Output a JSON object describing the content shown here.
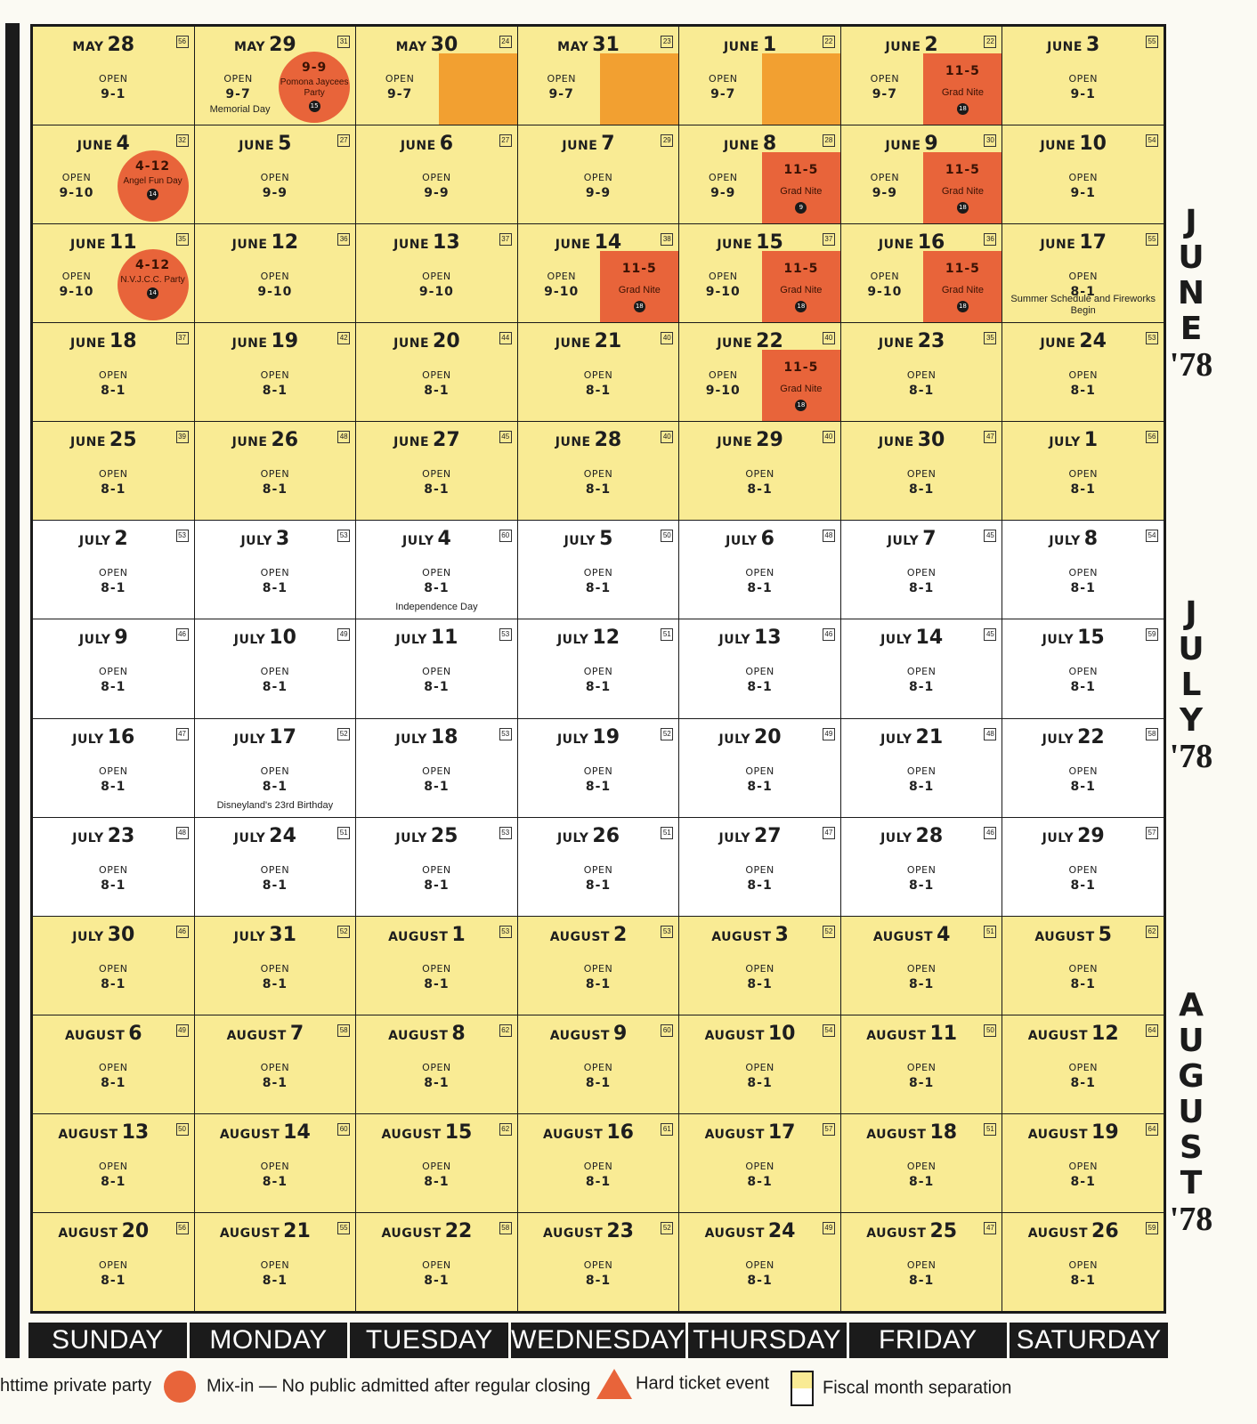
{
  "colors": {
    "june_aug_cell": "#f9eb94",
    "july_cell": "#ffffff",
    "event_orange": "#e8643a",
    "light_orange": "#f2a031",
    "bar": "#1b1b1b"
  },
  "cells": [
    {
      "month": "MAY",
      "day": "28",
      "num": "56",
      "bg": "y",
      "open": "OPEN",
      "hours": "9-1"
    },
    {
      "month": "MAY",
      "day": "29",
      "num": "31",
      "bg": "y",
      "open": "OPEN",
      "hours": "9-7",
      "note": "Memorial Day",
      "circle": {
        "time": "9-9",
        "label": "Pomona Jaycees Party",
        "badge": "15"
      }
    },
    {
      "month": "MAY",
      "day": "30",
      "num": "24",
      "bg": "y",
      "open": "OPEN",
      "hours": "9-7",
      "square": true
    },
    {
      "month": "MAY",
      "day": "31",
      "num": "23",
      "bg": "y",
      "open": "OPEN",
      "hours": "9-7",
      "square": true
    },
    {
      "month": "JUNE",
      "day": "1",
      "num": "22",
      "bg": "y",
      "open": "OPEN",
      "hours": "9-7",
      "square": true
    },
    {
      "month": "JUNE",
      "day": "2",
      "num": "22",
      "bg": "y",
      "open": "OPEN",
      "hours": "9-7",
      "event": {
        "time": "11-5",
        "label": "Grad Nite",
        "badge": "18"
      }
    },
    {
      "month": "JUNE",
      "day": "3",
      "num": "55",
      "bg": "y",
      "open": "OPEN",
      "hours": "9-1"
    },
    {
      "month": "JUNE",
      "day": "4",
      "num": "32",
      "bg": "y",
      "open": "OPEN",
      "hours": "9-10",
      "circle": {
        "time": "4-12",
        "label": "Angel Fun Day",
        "badge": "14"
      }
    },
    {
      "month": "JUNE",
      "day": "5",
      "num": "27",
      "bg": "y",
      "open": "OPEN",
      "hours": "9-9"
    },
    {
      "month": "JUNE",
      "day": "6",
      "num": "27",
      "bg": "y",
      "open": "OPEN",
      "hours": "9-9"
    },
    {
      "month": "JUNE",
      "day": "7",
      "num": "29",
      "bg": "y",
      "open": "OPEN",
      "hours": "9-9"
    },
    {
      "month": "JUNE",
      "day": "8",
      "num": "28",
      "bg": "y",
      "open": "OPEN",
      "hours": "9-9",
      "event": {
        "time": "11-5",
        "label": "Grad Nite",
        "badge": "9"
      }
    },
    {
      "month": "JUNE",
      "day": "9",
      "num": "30",
      "bg": "y",
      "open": "OPEN",
      "hours": "9-9",
      "event": {
        "time": "11-5",
        "label": "Grad Nite",
        "badge": "18"
      }
    },
    {
      "month": "JUNE",
      "day": "10",
      "num": "54",
      "bg": "y",
      "open": "OPEN",
      "hours": "9-1"
    },
    {
      "month": "JUNE",
      "day": "11",
      "num": "35",
      "bg": "y",
      "open": "OPEN",
      "hours": "9-10",
      "circle": {
        "time": "4-12",
        "label": "N.V.J.C.C. Party",
        "badge": "14"
      }
    },
    {
      "month": "JUNE",
      "day": "12",
      "num": "36",
      "bg": "y",
      "open": "OPEN",
      "hours": "9-10"
    },
    {
      "month": "JUNE",
      "day": "13",
      "num": "37",
      "bg": "y",
      "open": "OPEN",
      "hours": "9-10"
    },
    {
      "month": "JUNE",
      "day": "14",
      "num": "38",
      "bg": "y",
      "open": "OPEN",
      "hours": "9-10",
      "event": {
        "time": "11-5",
        "label": "Grad Nite",
        "badge": "18"
      }
    },
    {
      "month": "JUNE",
      "day": "15",
      "num": "37",
      "bg": "y",
      "open": "OPEN",
      "hours": "9-10",
      "event": {
        "time": "11-5",
        "label": "Grad Nite",
        "badge": "18"
      }
    },
    {
      "month": "JUNE",
      "day": "16",
      "num": "36",
      "bg": "y",
      "open": "OPEN",
      "hours": "9-10",
      "event": {
        "time": "11-5",
        "label": "Grad Nite",
        "badge": "18"
      }
    },
    {
      "month": "JUNE",
      "day": "17",
      "num": "55",
      "bg": "y",
      "open": "OPEN",
      "hours": "8-1",
      "note": "Summer Schedule and Fireworks Begin"
    },
    {
      "month": "JUNE",
      "day": "18",
      "num": "37",
      "bg": "y",
      "open": "OPEN",
      "hours": "8-1"
    },
    {
      "month": "JUNE",
      "day": "19",
      "num": "42",
      "bg": "y",
      "open": "OPEN",
      "hours": "8-1"
    },
    {
      "month": "JUNE",
      "day": "20",
      "num": "44",
      "bg": "y",
      "open": "OPEN",
      "hours": "8-1"
    },
    {
      "month": "JUNE",
      "day": "21",
      "num": "40",
      "bg": "y",
      "open": "OPEN",
      "hours": "8-1"
    },
    {
      "month": "JUNE",
      "day": "22",
      "num": "40",
      "bg": "y",
      "open": "OPEN",
      "hours": "9-10",
      "event": {
        "time": "11-5",
        "label": "Grad Nite",
        "badge": "18"
      }
    },
    {
      "month": "JUNE",
      "day": "23",
      "num": "35",
      "bg": "y",
      "open": "OPEN",
      "hours": "8-1"
    },
    {
      "month": "JUNE",
      "day": "24",
      "num": "53",
      "bg": "y",
      "open": "OPEN",
      "hours": "8-1"
    },
    {
      "month": "JUNE",
      "day": "25",
      "num": "39",
      "bg": "y",
      "open": "OPEN",
      "hours": "8-1"
    },
    {
      "month": "JUNE",
      "day": "26",
      "num": "48",
      "bg": "y",
      "open": "OPEN",
      "hours": "8-1"
    },
    {
      "month": "JUNE",
      "day": "27",
      "num": "45",
      "bg": "y",
      "open": "OPEN",
      "hours": "8-1"
    },
    {
      "month": "JUNE",
      "day": "28",
      "num": "40",
      "bg": "y",
      "open": "OPEN",
      "hours": "8-1"
    },
    {
      "month": "JUNE",
      "day": "29",
      "num": "40",
      "bg": "y",
      "open": "OPEN",
      "hours": "8-1"
    },
    {
      "month": "JUNE",
      "day": "30",
      "num": "47",
      "bg": "y",
      "open": "OPEN",
      "hours": "8-1"
    },
    {
      "month": "JULY",
      "day": "1",
      "num": "56",
      "bg": "y",
      "open": "OPEN",
      "hours": "8-1"
    },
    {
      "month": "JULY",
      "day": "2",
      "num": "53",
      "bg": "w",
      "open": "OPEN",
      "hours": "8-1"
    },
    {
      "month": "JULY",
      "day": "3",
      "num": "53",
      "bg": "w",
      "open": "OPEN",
      "hours": "8-1"
    },
    {
      "month": "JULY",
      "day": "4",
      "num": "60",
      "bg": "w",
      "open": "OPEN",
      "hours": "8-1",
      "note": "Independence Day"
    },
    {
      "month": "JULY",
      "day": "5",
      "num": "50",
      "bg": "w",
      "open": "OPEN",
      "hours": "8-1"
    },
    {
      "month": "JULY",
      "day": "6",
      "num": "48",
      "bg": "w",
      "open": "OPEN",
      "hours": "8-1"
    },
    {
      "month": "JULY",
      "day": "7",
      "num": "45",
      "bg": "w",
      "open": "OPEN",
      "hours": "8-1"
    },
    {
      "month": "JULY",
      "day": "8",
      "num": "54",
      "bg": "w",
      "open": "OPEN",
      "hours": "8-1"
    },
    {
      "month": "JULY",
      "day": "9",
      "num": "46",
      "bg": "w",
      "open": "OPEN",
      "hours": "8-1"
    },
    {
      "month": "JULY",
      "day": "10",
      "num": "49",
      "bg": "w",
      "open": "OPEN",
      "hours": "8-1"
    },
    {
      "month": "JULY",
      "day": "11",
      "num": "53",
      "bg": "w",
      "open": "OPEN",
      "hours": "8-1"
    },
    {
      "month": "JULY",
      "day": "12",
      "num": "51",
      "bg": "w",
      "open": "OPEN",
      "hours": "8-1"
    },
    {
      "month": "JULY",
      "day": "13",
      "num": "46",
      "bg": "w",
      "open": "OPEN",
      "hours": "8-1"
    },
    {
      "month": "JULY",
      "day": "14",
      "num": "45",
      "bg": "w",
      "open": "OPEN",
      "hours": "8-1"
    },
    {
      "month": "JULY",
      "day": "15",
      "num": "59",
      "bg": "w",
      "open": "OPEN",
      "hours": "8-1"
    },
    {
      "month": "JULY",
      "day": "16",
      "num": "47",
      "bg": "w",
      "open": "OPEN",
      "hours": "8-1"
    },
    {
      "month": "JULY",
      "day": "17",
      "num": "52",
      "bg": "w",
      "open": "OPEN",
      "hours": "8-1",
      "note": "Disneyland's 23rd Birthday"
    },
    {
      "month": "JULY",
      "day": "18",
      "num": "53",
      "bg": "w",
      "open": "OPEN",
      "hours": "8-1"
    },
    {
      "month": "JULY",
      "day": "19",
      "num": "52",
      "bg": "w",
      "open": "OPEN",
      "hours": "8-1"
    },
    {
      "month": "JULY",
      "day": "20",
      "num": "49",
      "bg": "w",
      "open": "OPEN",
      "hours": "8-1"
    },
    {
      "month": "JULY",
      "day": "21",
      "num": "48",
      "bg": "w",
      "open": "OPEN",
      "hours": "8-1"
    },
    {
      "month": "JULY",
      "day": "22",
      "num": "58",
      "bg": "w",
      "open": "OPEN",
      "hours": "8-1"
    },
    {
      "month": "JULY",
      "day": "23",
      "num": "48",
      "bg": "w",
      "open": "OPEN",
      "hours": "8-1"
    },
    {
      "month": "JULY",
      "day": "24",
      "num": "51",
      "bg": "w",
      "open": "OPEN",
      "hours": "8-1"
    },
    {
      "month": "JULY",
      "day": "25",
      "num": "53",
      "bg": "w",
      "open": "OPEN",
      "hours": "8-1"
    },
    {
      "month": "JULY",
      "day": "26",
      "num": "51",
      "bg": "w",
      "open": "OPEN",
      "hours": "8-1"
    },
    {
      "month": "JULY",
      "day": "27",
      "num": "47",
      "bg": "w",
      "open": "OPEN",
      "hours": "8-1"
    },
    {
      "month": "JULY",
      "day": "28",
      "num": "46",
      "bg": "w",
      "open": "OPEN",
      "hours": "8-1"
    },
    {
      "month": "JULY",
      "day": "29",
      "num": "57",
      "bg": "w",
      "open": "OPEN",
      "hours": "8-1"
    },
    {
      "month": "JULY",
      "day": "30",
      "num": "46",
      "bg": "y",
      "open": "OPEN",
      "hours": "8-1"
    },
    {
      "month": "JULY",
      "day": "31",
      "num": "52",
      "bg": "y",
      "open": "OPEN",
      "hours": "8-1"
    },
    {
      "month": "AUGUST",
      "day": "1",
      "num": "53",
      "bg": "y",
      "open": "OPEN",
      "hours": "8-1"
    },
    {
      "month": "AUGUST",
      "day": "2",
      "num": "53",
      "bg": "y",
      "open": "OPEN",
      "hours": "8-1"
    },
    {
      "month": "AUGUST",
      "day": "3",
      "num": "52",
      "bg": "y",
      "open": "OPEN",
      "hours": "8-1"
    },
    {
      "month": "AUGUST",
      "day": "4",
      "num": "51",
      "bg": "y",
      "open": "OPEN",
      "hours": "8-1"
    },
    {
      "month": "AUGUST",
      "day": "5",
      "num": "62",
      "bg": "y",
      "open": "OPEN",
      "hours": "8-1"
    },
    {
      "month": "AUGUST",
      "day": "6",
      "num": "49",
      "bg": "y",
      "open": "OPEN",
      "hours": "8-1"
    },
    {
      "month": "AUGUST",
      "day": "7",
      "num": "58",
      "bg": "y",
      "open": "OPEN",
      "hours": "8-1"
    },
    {
      "month": "AUGUST",
      "day": "8",
      "num": "62",
      "bg": "y",
      "open": "OPEN",
      "hours": "8-1"
    },
    {
      "month": "AUGUST",
      "day": "9",
      "num": "60",
      "bg": "y",
      "open": "OPEN",
      "hours": "8-1"
    },
    {
      "month": "AUGUST",
      "day": "10",
      "num": "54",
      "bg": "y",
      "open": "OPEN",
      "hours": "8-1"
    },
    {
      "month": "AUGUST",
      "day": "11",
      "num": "50",
      "bg": "y",
      "open": "OPEN",
      "hours": "8-1"
    },
    {
      "month": "AUGUST",
      "day": "12",
      "num": "64",
      "bg": "y",
      "open": "OPEN",
      "hours": "8-1"
    },
    {
      "month": "AUGUST",
      "day": "13",
      "num": "50",
      "bg": "y",
      "open": "OPEN",
      "hours": "8-1"
    },
    {
      "month": "AUGUST",
      "day": "14",
      "num": "60",
      "bg": "y",
      "open": "OPEN",
      "hours": "8-1"
    },
    {
      "month": "AUGUST",
      "day": "15",
      "num": "62",
      "bg": "y",
      "open": "OPEN",
      "hours": "8-1"
    },
    {
      "month": "AUGUST",
      "day": "16",
      "num": "61",
      "bg": "y",
      "open": "OPEN",
      "hours": "8-1"
    },
    {
      "month": "AUGUST",
      "day": "17",
      "num": "57",
      "bg": "y",
      "open": "OPEN",
      "hours": "8-1"
    },
    {
      "month": "AUGUST",
      "day": "18",
      "num": "51",
      "bg": "y",
      "open": "OPEN",
      "hours": "8-1"
    },
    {
      "month": "AUGUST",
      "day": "19",
      "num": "64",
      "bg": "y",
      "open": "OPEN",
      "hours": "8-1"
    },
    {
      "month": "AUGUST",
      "day": "20",
      "num": "56",
      "bg": "y",
      "open": "OPEN",
      "hours": "8-1"
    },
    {
      "month": "AUGUST",
      "day": "21",
      "num": "55",
      "bg": "y",
      "open": "OPEN",
      "hours": "8-1"
    },
    {
      "month": "AUGUST",
      "day": "22",
      "num": "58",
      "bg": "y",
      "open": "OPEN",
      "hours": "8-1"
    },
    {
      "month": "AUGUST",
      "day": "23",
      "num": "52",
      "bg": "y",
      "open": "OPEN",
      "hours": "8-1"
    },
    {
      "month": "AUGUST",
      "day": "24",
      "num": "49",
      "bg": "y",
      "open": "OPEN",
      "hours": "8-1"
    },
    {
      "month": "AUGUST",
      "day": "25",
      "num": "47",
      "bg": "y",
      "open": "OPEN",
      "hours": "8-1"
    },
    {
      "month": "AUGUST",
      "day": "26",
      "num": "59",
      "bg": "y",
      "open": "OPEN",
      "hours": "8-1"
    }
  ],
  "weekdays": [
    "SUNDAY",
    "MONDAY",
    "TUESDAY",
    "WEDNESDAY",
    "THURSDAY",
    "FRIDAY",
    "SATURDAY"
  ],
  "side": {
    "june": {
      "letters": "JUNE",
      "year": "'78"
    },
    "july": {
      "letters": "JULY",
      "year": "'78"
    },
    "august": {
      "letters": "AUGUST",
      "year": "'78"
    }
  },
  "legend": {
    "private_party": "httime private party",
    "mix_in": "Mix-in — No public admitted after regular closing",
    "hard_ticket": "Hard ticket event",
    "fiscal": "Fiscal month separation"
  }
}
